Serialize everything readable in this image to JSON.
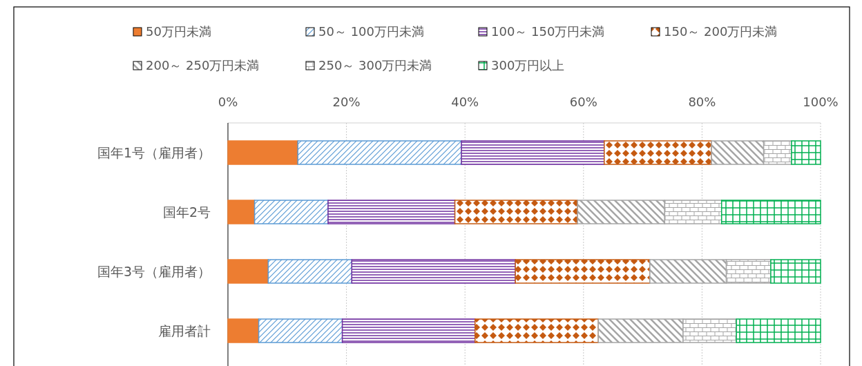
{
  "chart_data": {
    "type": "bar",
    "orientation": "horizontal",
    "stacked": true,
    "categories": [
      "国年1号（雇用者）",
      "国年2号",
      "国年3号（雇用者）",
      "雇用者計"
    ],
    "series": [
      {
        "name": "50万円未満",
        "color": "#ed7d31",
        "values": [
          11.8,
          4.5,
          6.8,
          5.2
        ]
      },
      {
        "name": "50～ 100万円未満",
        "color": "#5b9bd5",
        "values": [
          27.6,
          12.4,
          14.1,
          14.1
        ]
      },
      {
        "name": "100～ 150万円未満",
        "color": "#7030a0",
        "values": [
          24.1,
          21.4,
          27.6,
          22.4
        ]
      },
      {
        "name": "150～ 200万円未満",
        "color": "#c55a11",
        "values": [
          18.1,
          20.7,
          22.7,
          20.8
        ]
      },
      {
        "name": "200～ 250万円未満",
        "color": "#a5a5a5",
        "values": [
          8.8,
          14.7,
          12.9,
          14.3
        ]
      },
      {
        "name": "250～ 300万円未満",
        "color": "#a5a5a5",
        "values": [
          4.7,
          9.6,
          7.5,
          9.0
        ]
      },
      {
        "name": "300万円以上",
        "color": "#00b050",
        "values": [
          4.9,
          16.7,
          8.4,
          14.2
        ]
      }
    ],
    "xlim": [
      0,
      100
    ],
    "xticks": [
      {
        "value": 0,
        "label": "0%"
      },
      {
        "value": 20,
        "label": "20%"
      },
      {
        "value": 40,
        "label": "40%"
      },
      {
        "value": 60,
        "label": "60%"
      },
      {
        "value": 80,
        "label": "80%"
      },
      {
        "value": 100,
        "label": "100%"
      }
    ],
    "grid": "x",
    "legend": "top"
  }
}
